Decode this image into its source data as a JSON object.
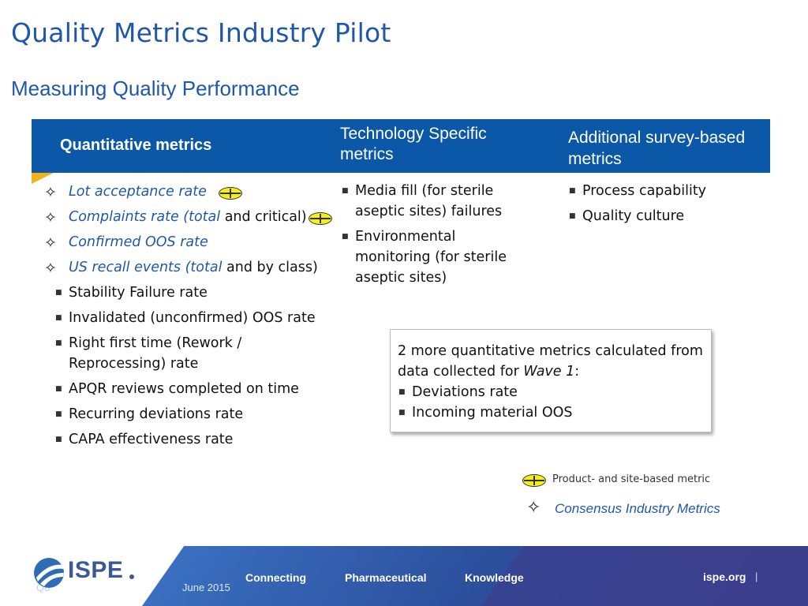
{
  "title": "Quality Metrics Industry Pilot",
  "subtitle": "Measuring Quality Performance",
  "header": {
    "col1": "Quantitative metrics",
    "col2": "Technology Specific metrics",
    "col3": "Additional survey-based metrics"
  },
  "quantitative": [
    {
      "text": "Lot acceptance rate",
      "marker": "star",
      "product_site": true
    },
    {
      "italic": "Complaints rate (total",
      "text": " and critical)",
      "marker": "star",
      "product_site": true
    },
    {
      "text": "Confirmed OOS rate",
      "marker": "star"
    },
    {
      "italic": "US recall events (total",
      "text": " and by class)",
      "marker": "star"
    },
    {
      "text": "Stability Failure rate",
      "marker": "bullet"
    },
    {
      "text": "Invalidated (unconfirmed)  OOS rate",
      "marker": "bullet"
    },
    {
      "text": "Right first time (Rework / Reprocessing) rate",
      "marker": "bullet"
    },
    {
      "text": "APQR reviews completed on time",
      "marker": "bullet"
    },
    {
      "text": "Recurring deviations rate",
      "marker": "bullet"
    },
    {
      "text": "CAPA effectiveness rate",
      "marker": "bullet"
    }
  ],
  "technology": [
    "Media fill (for sterile aseptic sites) failures",
    "Environmental monitoring (for sterile aseptic sites)"
  ],
  "survey": [
    "Process capability",
    "Quality culture"
  ],
  "box": {
    "intro_before": "2 more quantitative metrics calculated from data collected for ",
    "intro_italic": "Wave 1",
    "intro_after": ":",
    "items": [
      "Deviations rate",
      "Incoming material OOS"
    ]
  },
  "legend": {
    "product_site": "Product- and site-based metric",
    "consensus": "Consensus Industry Metrics"
  },
  "footer": {
    "logo_text": "ISPE",
    "connecting": "Connecting",
    "pharmaceutical": "Pharmaceutical",
    "knowledge": "Knowledge",
    "site": "ispe.org",
    "pipe": "|",
    "date": "June 2015",
    "conf_fragment": "Qu"
  },
  "colors": {
    "title_blue": "#1f58a8",
    "header_blue": "#0b58a8",
    "accent_yellow": "#f1b31c",
    "marker_yellow": "#f5ee1e"
  },
  "icons": {
    "consensus_marker": "four-point-star-icon",
    "product_site_marker": "crosshair-circle-icon",
    "bullet": "square-bullet-icon"
  }
}
